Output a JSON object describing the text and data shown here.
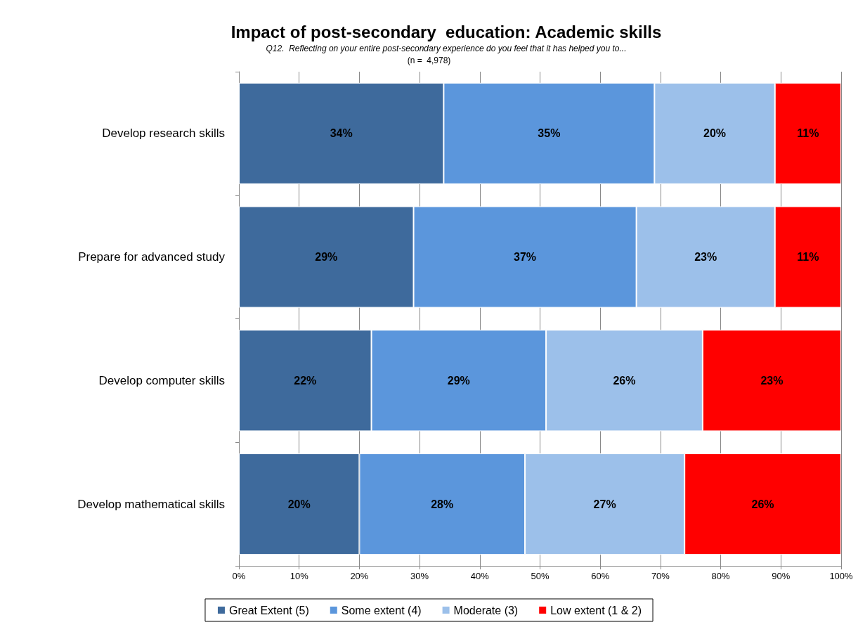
{
  "chart_data": {
    "type": "bar",
    "title": "Impact of post-secondary  education: Academic skills",
    "subtitle": "Q12.  Reflecting on your entire post-secondary experience do you feel that it has helped you to...",
    "annotations": [
      "(n =  4,978)"
    ],
    "categories": [
      "Develop research skills",
      "Prepare for advanced study",
      "Develop computer skills",
      "Develop mathematical skills"
    ],
    "orientation": "horizontal",
    "stacked": true,
    "grid": "x",
    "legend": "bottom",
    "xlim": [
      0,
      100
    ],
    "xticks": [
      {
        "value": 0,
        "label": "0%"
      },
      {
        "value": 10,
        "label": "10%"
      },
      {
        "value": 20,
        "label": "20%"
      },
      {
        "value": 30,
        "label": "30%"
      },
      {
        "value": 40,
        "label": "40%"
      },
      {
        "value": 50,
        "label": "50%"
      },
      {
        "value": 60,
        "label": "60%"
      },
      {
        "value": 70,
        "label": "70%"
      },
      {
        "value": 80,
        "label": "80%"
      },
      {
        "value": 90,
        "label": "90%"
      },
      {
        "value": 100,
        "label": "100%"
      }
    ],
    "series": [
      {
        "name": "Great Extent (5)",
        "color": "#3e6a9c",
        "values": [
          34,
          29,
          22,
          20
        ],
        "value_labels": [
          "34%",
          "29%",
          "22%",
          "20%"
        ]
      },
      {
        "name": "Some extent (4)",
        "color": "#5b96dc",
        "values": [
          35,
          37,
          29,
          27.5
        ],
        "value_labels": [
          "35%",
          "37%",
          "29%",
          "28%"
        ]
      },
      {
        "name": "Moderate (3)",
        "color": "#9cc0ea",
        "values": [
          20,
          23,
          26,
          26.5
        ],
        "value_labels": [
          "20%",
          "23%",
          "26%",
          "27%"
        ]
      },
      {
        "name": "Low extent (1 & 2)",
        "color": "#ff0000",
        "values": [
          11,
          11,
          23,
          26
        ],
        "value_labels": [
          "11%",
          "11%",
          "23%",
          "26%"
        ]
      }
    ]
  }
}
